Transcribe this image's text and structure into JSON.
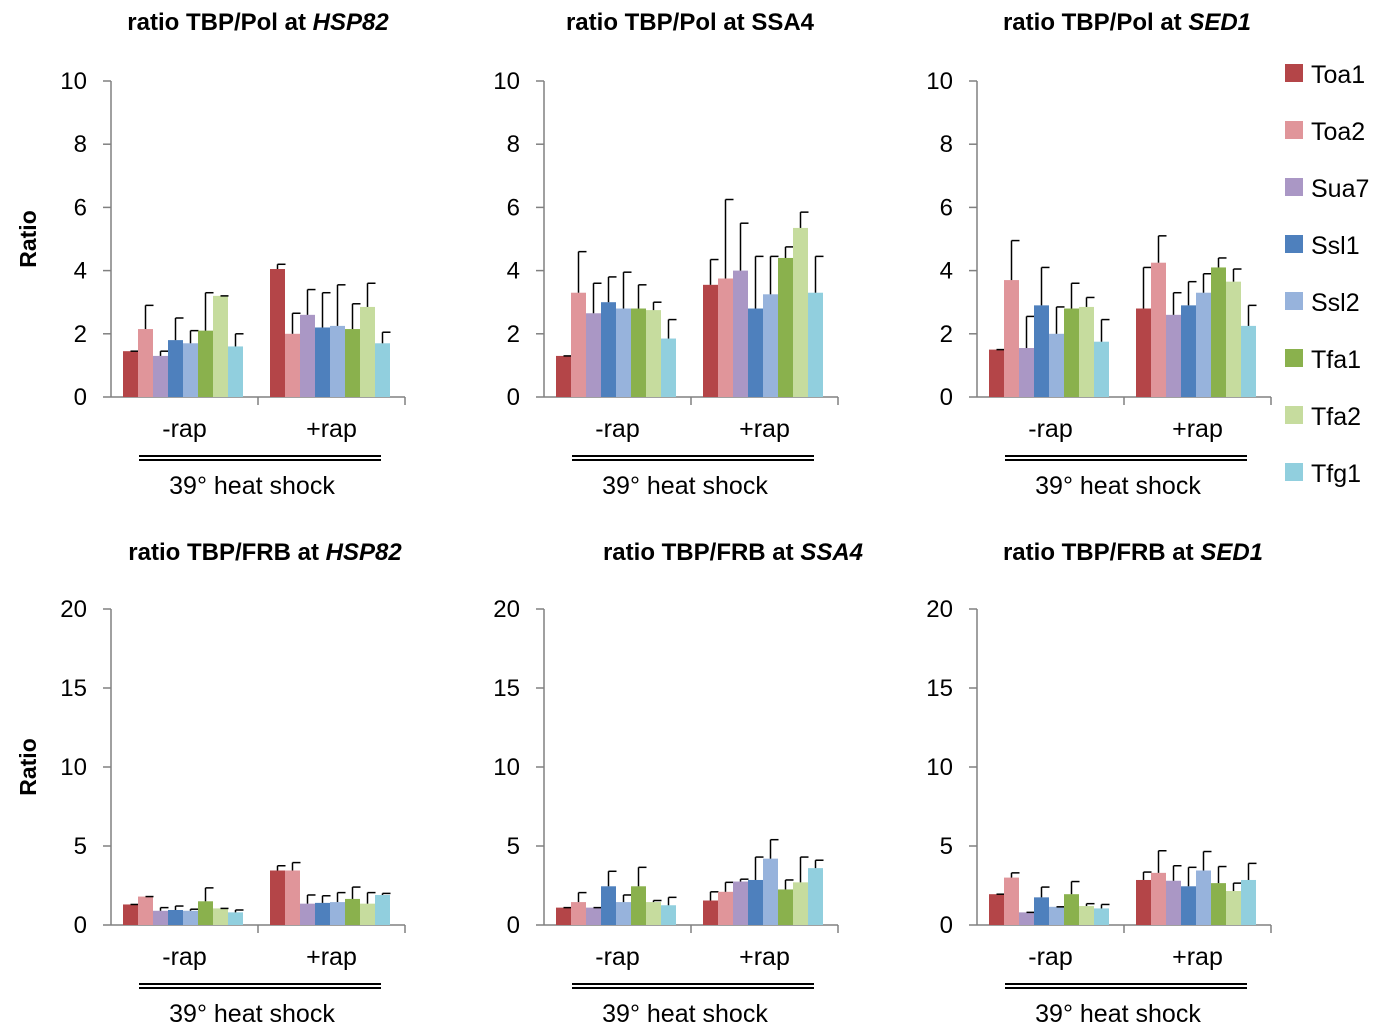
{
  "chart_data": [
    {
      "type": "bar",
      "title": "ratio TBP/Pol at ",
      "title_gene": "HSP82",
      "title_gene_italic": true,
      "ylabel": "Ratio",
      "ylim": [
        0,
        10
      ],
      "yticks": [
        "0",
        "2",
        "4",
        "6",
        "8",
        "10"
      ],
      "categories": [
        "-rap",
        "+rap"
      ],
      "group_label": "39° heat shock",
      "series": [
        {
          "name": "Toa1",
          "values": [
            1.45,
            4.05
          ],
          "errors": [
            0.0,
            0.15
          ]
        },
        {
          "name": "Toa2",
          "values": [
            2.15,
            2.0
          ],
          "errors": [
            0.75,
            0.65
          ]
        },
        {
          "name": "Sua7",
          "values": [
            1.3,
            2.6
          ],
          "errors": [
            0.15,
            0.8
          ]
        },
        {
          "name": "Ssl1",
          "values": [
            1.8,
            2.2
          ],
          "errors": [
            0.7,
            1.1
          ]
        },
        {
          "name": "Ssl2",
          "values": [
            1.7,
            2.25
          ],
          "errors": [
            0.4,
            1.3
          ]
        },
        {
          "name": "Tfa1",
          "values": [
            2.1,
            2.15
          ],
          "errors": [
            1.2,
            0.8
          ]
        },
        {
          "name": "Tfa2",
          "values": [
            3.2,
            2.85
          ],
          "errors": [
            0.0,
            0.75
          ]
        },
        {
          "name": "Tfg1",
          "values": [
            1.6,
            1.7
          ],
          "errors": [
            0.4,
            0.35
          ]
        }
      ]
    },
    {
      "type": "bar",
      "title": "ratio TBP/Pol at SSA4",
      "title_gene": "",
      "title_gene_italic": false,
      "ylabel": "",
      "ylim": [
        0,
        10
      ],
      "yticks": [
        "0",
        "2",
        "4",
        "6",
        "8",
        "10"
      ],
      "categories": [
        "-rap",
        "+rap"
      ],
      "group_label": "39° heat shock",
      "series": [
        {
          "name": "Toa1",
          "values": [
            1.3,
            3.55
          ],
          "errors": [
            0.0,
            0.8
          ]
        },
        {
          "name": "Toa2",
          "values": [
            3.3,
            3.75
          ],
          "errors": [
            1.3,
            2.5
          ]
        },
        {
          "name": "Sua7",
          "values": [
            2.65,
            4.0
          ],
          "errors": [
            0.95,
            1.5
          ]
        },
        {
          "name": "Ssl1",
          "values": [
            3.0,
            2.8
          ],
          "errors": [
            0.8,
            1.65
          ]
        },
        {
          "name": "Ssl2",
          "values": [
            2.8,
            3.25
          ],
          "errors": [
            1.15,
            1.2
          ]
        },
        {
          "name": "Tfa1",
          "values": [
            2.8,
            4.4
          ],
          "errors": [
            0.75,
            0.35
          ]
        },
        {
          "name": "Tfa2",
          "values": [
            2.75,
            5.35
          ],
          "errors": [
            0.25,
            0.5
          ]
        },
        {
          "name": "Tfg1",
          "values": [
            1.85,
            3.3
          ],
          "errors": [
            0.6,
            1.15
          ]
        }
      ]
    },
    {
      "type": "bar",
      "title": "ratio TBP/Pol at ",
      "title_gene": "SED1",
      "title_gene_italic": true,
      "ylabel": "",
      "ylim": [
        0,
        10
      ],
      "yticks": [
        "0",
        "2",
        "4",
        "6",
        "8",
        "10"
      ],
      "categories": [
        "-rap",
        "+rap"
      ],
      "group_label": "39° heat shock",
      "series": [
        {
          "name": "Toa1",
          "values": [
            1.5,
            2.8
          ],
          "errors": [
            0.0,
            1.3
          ]
        },
        {
          "name": "Toa2",
          "values": [
            3.7,
            4.25
          ],
          "errors": [
            1.25,
            0.85
          ]
        },
        {
          "name": "Sua7",
          "values": [
            1.55,
            2.6
          ],
          "errors": [
            1.0,
            0.7
          ]
        },
        {
          "name": "Ssl1",
          "values": [
            2.9,
            2.9
          ],
          "errors": [
            1.2,
            0.75
          ]
        },
        {
          "name": "Ssl2",
          "values": [
            2.0,
            3.3
          ],
          "errors": [
            0.85,
            0.6
          ]
        },
        {
          "name": "Tfa1",
          "values": [
            2.8,
            4.1
          ],
          "errors": [
            0.8,
            0.3
          ]
        },
        {
          "name": "Tfa2",
          "values": [
            2.85,
            3.65
          ],
          "errors": [
            0.3,
            0.4
          ]
        },
        {
          "name": "Tfg1",
          "values": [
            1.75,
            2.25
          ],
          "errors": [
            0.7,
            0.65
          ]
        }
      ]
    },
    {
      "type": "bar",
      "title": "ratio TBP/FRB at ",
      "title_gene": "HSP82",
      "title_gene_italic": true,
      "ylabel": "Ratio",
      "ylim": [
        0,
        20
      ],
      "yticks": [
        "0",
        "5",
        "10",
        "15",
        "20"
      ],
      "categories": [
        "-rap",
        "+rap"
      ],
      "group_label": "39° heat shock",
      "series": [
        {
          "name": "Toa1",
          "values": [
            1.3,
            3.45
          ],
          "errors": [
            0.0,
            0.3
          ]
        },
        {
          "name": "Toa2",
          "values": [
            1.8,
            3.45
          ],
          "errors": [
            0.0,
            0.5
          ]
        },
        {
          "name": "Sua7",
          "values": [
            0.9,
            1.35
          ],
          "errors": [
            0.2,
            0.55
          ]
        },
        {
          "name": "Ssl1",
          "values": [
            0.95,
            1.4
          ],
          "errors": [
            0.25,
            0.45
          ]
        },
        {
          "name": "Ssl2",
          "values": [
            0.9,
            1.45
          ],
          "errors": [
            0.1,
            0.6
          ]
        },
        {
          "name": "Tfa1",
          "values": [
            1.5,
            1.65
          ],
          "errors": [
            0.85,
            0.75
          ]
        },
        {
          "name": "Tfa2",
          "values": [
            1.05,
            1.35
          ],
          "errors": [
            0.0,
            0.7
          ]
        },
        {
          "name": "Tfg1",
          "values": [
            0.8,
            1.9
          ],
          "errors": [
            0.15,
            0.1
          ]
        }
      ]
    },
    {
      "type": "bar",
      "title": "ratio TBP/FRB at ",
      "title_gene": "SSA4",
      "title_gene_italic": true,
      "ylabel": "",
      "ylim": [
        0,
        20
      ],
      "yticks": [
        "0",
        "5",
        "10",
        "15",
        "20"
      ],
      "categories": [
        "-rap",
        "+rap"
      ],
      "group_label": "39° heat shock",
      "series": [
        {
          "name": "Toa1",
          "values": [
            1.1,
            1.55
          ],
          "errors": [
            0.0,
            0.55
          ]
        },
        {
          "name": "Toa2",
          "values": [
            1.45,
            2.1
          ],
          "errors": [
            0.6,
            0.6
          ]
        },
        {
          "name": "Sua7",
          "values": [
            1.1,
            2.75
          ],
          "errors": [
            0.0,
            0.15
          ]
        },
        {
          "name": "Ssl1",
          "values": [
            2.45,
            2.85
          ],
          "errors": [
            0.95,
            1.45
          ]
        },
        {
          "name": "Ssl2",
          "values": [
            1.45,
            4.2
          ],
          "errors": [
            0.45,
            1.2
          ]
        },
        {
          "name": "Tfa1",
          "values": [
            2.45,
            2.25
          ],
          "errors": [
            1.2,
            0.6
          ]
        },
        {
          "name": "Tfa2",
          "values": [
            1.45,
            2.7
          ],
          "errors": [
            0.1,
            1.6
          ]
        },
        {
          "name": "Tfg1",
          "values": [
            1.25,
            3.6
          ],
          "errors": [
            0.5,
            0.5
          ]
        }
      ]
    },
    {
      "type": "bar",
      "title": "ratio TBP/FRB at ",
      "title_gene": "SED1",
      "title_gene_italic": true,
      "ylabel": "",
      "ylim": [
        0,
        20
      ],
      "yticks": [
        "0",
        "5",
        "10",
        "15",
        "20"
      ],
      "categories": [
        "-rap",
        "+rap"
      ],
      "group_label": "39° heat shock",
      "series": [
        {
          "name": "Toa1",
          "values": [
            1.95,
            2.85
          ],
          "errors": [
            0.0,
            0.5
          ]
        },
        {
          "name": "Toa2",
          "values": [
            3.0,
            3.3
          ],
          "errors": [
            0.3,
            1.4
          ]
        },
        {
          "name": "Sua7",
          "values": [
            0.8,
            2.8
          ],
          "errors": [
            0.0,
            0.95
          ]
        },
        {
          "name": "Ssl1",
          "values": [
            1.75,
            2.45
          ],
          "errors": [
            0.65,
            1.2
          ]
        },
        {
          "name": "Ssl2",
          "values": [
            1.15,
            3.45
          ],
          "errors": [
            0.0,
            1.2
          ]
        },
        {
          "name": "Tfa1",
          "values": [
            1.95,
            2.65
          ],
          "errors": [
            0.8,
            1.05
          ]
        },
        {
          "name": "Tfa2",
          "values": [
            1.2,
            2.15
          ],
          "errors": [
            0.15,
            0.5
          ]
        },
        {
          "name": "Tfg1",
          "values": [
            1.05,
            2.85
          ],
          "errors": [
            0.25,
            1.05
          ]
        }
      ]
    }
  ],
  "legend": {
    "placement": "right",
    "items": [
      "Toa1",
      "Toa2",
      "Sua7",
      "Ssl1",
      "Ssl2",
      "Tfa1",
      "Tfa2",
      "Tfg1"
    ]
  },
  "colors": {
    "Toa1": "#b44548",
    "Toa2": "#e0959a",
    "Sua7": "#aa97c5",
    "Ssl1": "#4e80bd",
    "Ssl2": "#97b3dc",
    "Tfa1": "#8ab14d",
    "Tfa2": "#c6dc9e",
    "Tfg1": "#91cfde",
    "axis": "#808080",
    "errorbar": "#000000",
    "group_rule": "#000000"
  }
}
